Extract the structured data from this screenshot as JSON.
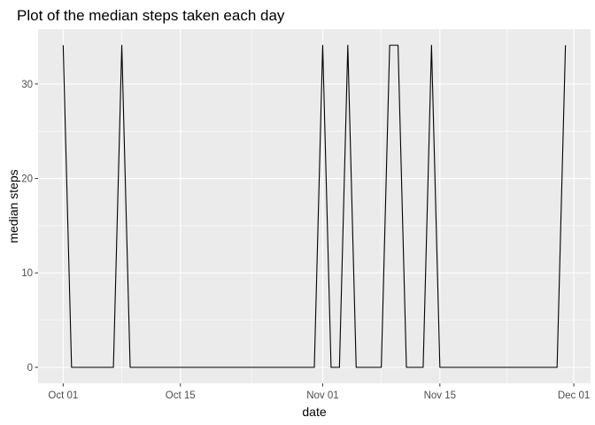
{
  "chart_data": {
    "type": "line",
    "title": "Plot of the median steps taken each day",
    "xlabel": "date",
    "ylabel": "median steps",
    "x_tick_labels": [
      "Oct 01",
      "Oct 15",
      "Nov 01",
      "Nov 15",
      "Dec 01"
    ],
    "x_tick_values": [
      "2012-10-01",
      "2012-10-15",
      "2012-11-01",
      "2012-11-15",
      "2012-12-01"
    ],
    "y_tick_labels": [
      "0",
      "10",
      "20",
      "30"
    ],
    "y_tick_values": [
      0,
      10,
      20,
      30
    ],
    "xlim": [
      "2012-09-28",
      "2012-12-03"
    ],
    "ylim": [
      -1.7,
      35.8
    ],
    "grid": true,
    "background": "#EBEBEB",
    "grid_color": "#FFFFFF",
    "line_color": "#000000",
    "series": [
      {
        "x": [
          "2012-10-01",
          "2012-10-02",
          "2012-10-03",
          "2012-10-04",
          "2012-10-05",
          "2012-10-06",
          "2012-10-07",
          "2012-10-08",
          "2012-10-09",
          "2012-10-10",
          "2012-10-11",
          "2012-10-12",
          "2012-10-13",
          "2012-10-14",
          "2012-10-15",
          "2012-10-16",
          "2012-10-17",
          "2012-10-18",
          "2012-10-19",
          "2012-10-20",
          "2012-10-21",
          "2012-10-22",
          "2012-10-23",
          "2012-10-24",
          "2012-10-25",
          "2012-10-26",
          "2012-10-27",
          "2012-10-28",
          "2012-10-29",
          "2012-10-30",
          "2012-10-31",
          "2012-11-01",
          "2012-11-02",
          "2012-11-03",
          "2012-11-04",
          "2012-11-05",
          "2012-11-06",
          "2012-11-07",
          "2012-11-08",
          "2012-11-09",
          "2012-11-10",
          "2012-11-11",
          "2012-11-12",
          "2012-11-13",
          "2012-11-14",
          "2012-11-15",
          "2012-11-16",
          "2012-11-17",
          "2012-11-18",
          "2012-11-19",
          "2012-11-20",
          "2012-11-21",
          "2012-11-22",
          "2012-11-23",
          "2012-11-24",
          "2012-11-25",
          "2012-11-26",
          "2012-11-27",
          "2012-11-28",
          "2012-11-29",
          "2012-11-30"
        ],
        "y": [
          34.1,
          0,
          0,
          0,
          0,
          0,
          0,
          34.1,
          0,
          0,
          0,
          0,
          0,
          0,
          0,
          0,
          0,
          0,
          0,
          0,
          0,
          0,
          0,
          0,
          0,
          0,
          0,
          0,
          0,
          0,
          0,
          34.1,
          0,
          0,
          34.1,
          0,
          0,
          0,
          0,
          34.1,
          34.1,
          0,
          0,
          0,
          34.1,
          0,
          0,
          0,
          0,
          0,
          0,
          0,
          0,
          0,
          0,
          0,
          0,
          0,
          0,
          0,
          34.1
        ]
      }
    ]
  }
}
